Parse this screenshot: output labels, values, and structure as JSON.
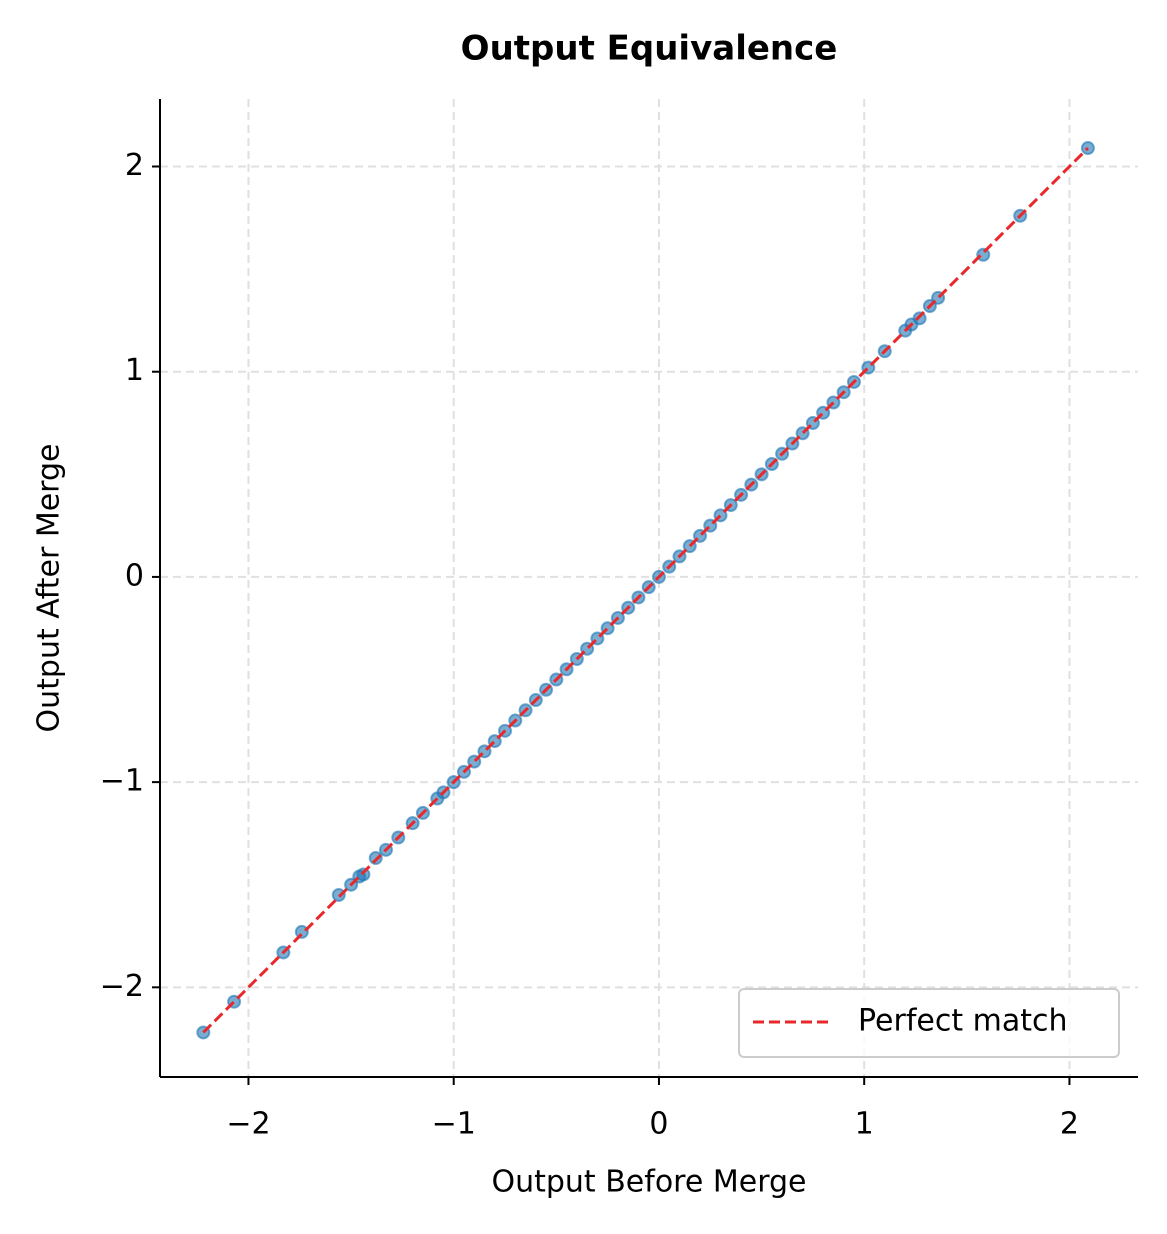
{
  "chart_data": {
    "type": "scatter",
    "title": "Output Equivalence",
    "x_label": "Output Before Merge",
    "y_label": "Output After Merge",
    "xlim": [
      -2.431,
      2.334
    ],
    "ylim": [
      -2.437,
      2.329
    ],
    "xticks": [
      {
        "value": -2,
        "label": "−2"
      },
      {
        "value": -1,
        "label": "−1"
      },
      0,
      1,
      2
    ],
    "yticks": [
      {
        "value": -2,
        "label": "−2"
      },
      {
        "value": -1,
        "label": "−1"
      },
      0,
      1,
      2
    ],
    "grid": true,
    "color": "#1f77b4",
    "legend": "lower right",
    "x": [
      -2.22,
      -2.07,
      -1.83,
      -1.74,
      -1.56,
      -1.5,
      -1.46,
      -1.44,
      -1.38,
      -1.33,
      -1.27,
      -1.2,
      -1.15,
      -1.08,
      -1.05,
      -1.0,
      -0.95,
      -0.9,
      -0.85,
      -0.8,
      -0.75,
      -0.7,
      -0.65,
      -0.6,
      -0.55,
      -0.5,
      -0.45,
      -0.4,
      -0.35,
      -0.3,
      -0.25,
      -0.2,
      -0.15,
      -0.1,
      -0.05,
      0,
      0.05,
      0.1,
      0.15,
      0.2,
      0.25,
      0.3,
      0.35,
      0.4,
      0.45,
      0.5,
      0.55,
      0.6,
      0.65,
      0.7,
      0.75,
      0.8,
      0.85,
      0.9,
      0.95,
      1.02,
      1.1,
      1.2,
      1.23,
      1.27,
      1.32,
      1.36,
      1.58,
      1.76,
      2.09
    ],
    "y": [
      -2.22,
      -2.07,
      -1.83,
      -1.73,
      -1.55,
      -1.5,
      -1.46,
      -1.45,
      -1.37,
      -1.33,
      -1.27,
      -1.2,
      -1.15,
      -1.08,
      -1.05,
      -1.0,
      -0.95,
      -0.9,
      -0.85,
      -0.8,
      -0.75,
      -0.7,
      -0.65,
      -0.6,
      -0.55,
      -0.5,
      -0.45,
      -0.4,
      -0.35,
      -0.3,
      -0.25,
      -0.2,
      -0.15,
      -0.1,
      -0.05,
      0,
      0.05,
      0.1,
      0.15,
      0.2,
      0.25,
      0.3,
      0.35,
      0.4,
      0.45,
      0.5,
      0.55,
      0.6,
      0.65,
      0.7,
      0.75,
      0.8,
      0.85,
      0.9,
      0.95,
      1.02,
      1.1,
      1.2,
      1.23,
      1.26,
      1.32,
      1.36,
      1.57,
      1.76,
      2.09
    ],
    "reference_line": {
      "name": "Perfect match",
      "x": [
        -2.22,
        2.09
      ],
      "y": [
        -2.22,
        2.09
      ],
      "color": "#e8282a"
    }
  }
}
